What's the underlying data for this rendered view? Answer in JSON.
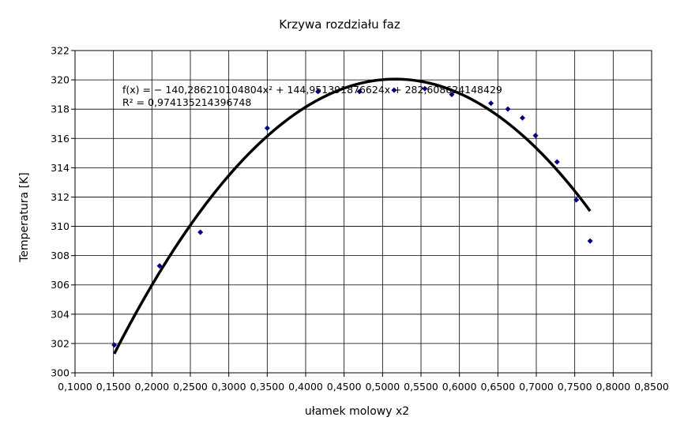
{
  "chart_data": {
    "type": "scatter",
    "title": "Krzywa rozdziału faz",
    "xlabel": "ułamek molowy x2",
    "ylabel": "Temperatura [K]",
    "xlim": [
      0.1,
      0.85
    ],
    "ylim": [
      300,
      322
    ],
    "x_ticks": [
      "0,1000",
      "0,1500",
      "0,2000",
      "0,2500",
      "0,3000",
      "0,3500",
      "0,4000",
      "0,4500",
      "0,5000",
      "0,5500",
      "0,6000",
      "0,6500",
      "0,7000",
      "0,7500",
      "0,8000",
      "0,8500"
    ],
    "y_ticks": [
      "300",
      "302",
      "304",
      "306",
      "308",
      "310",
      "312",
      "314",
      "316",
      "318",
      "320",
      "322"
    ],
    "grid": true,
    "legend": "none",
    "marker_color": "#000080",
    "trendline_color": "#000000",
    "series": [
      {
        "points": [
          {
            "x": 0.151,
            "y": 301.9
          },
          {
            "x": 0.21,
            "y": 307.3
          },
          {
            "x": 0.263,
            "y": 309.6
          },
          {
            "x": 0.35,
            "y": 316.7
          },
          {
            "x": 0.416,
            "y": 319.2
          },
          {
            "x": 0.47,
            "y": 319.2
          },
          {
            "x": 0.515,
            "y": 319.3
          },
          {
            "x": 0.555,
            "y": 319.4
          },
          {
            "x": 0.59,
            "y": 319.0
          },
          {
            "x": 0.641,
            "y": 318.4
          },
          {
            "x": 0.663,
            "y": 318.0
          },
          {
            "x": 0.682,
            "y": 317.4
          },
          {
            "x": 0.699,
            "y": 316.2
          },
          {
            "x": 0.727,
            "y": 314.4
          },
          {
            "x": 0.752,
            "y": 311.8
          },
          {
            "x": 0.77,
            "y": 309.0
          }
        ]
      }
    ],
    "trendline": {
      "type": "polynomial",
      "coefficients": [
        -140.286210104804,
        144.951391876624,
        282.608624148429
      ],
      "x_range": [
        0.151,
        0.77
      ],
      "equation": "f(x) = − 140,286210104804x² + 144,951391876624x + 282,608624148429",
      "r_squared": "R² = 0,974135214396748"
    }
  }
}
